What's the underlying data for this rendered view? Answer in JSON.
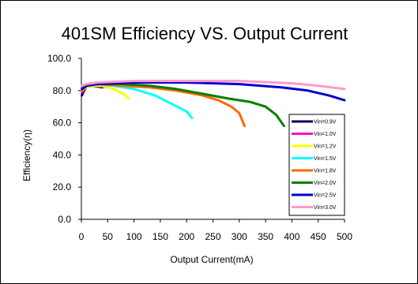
{
  "chart_data": {
    "type": "line",
    "title": "401SM Efficiency VS. Output Current",
    "xlabel": "Output Current(mA)",
    "ylabel": "Efficiency(η)",
    "xlim": [
      0,
      500
    ],
    "ylim": [
      0,
      100
    ],
    "x_ticks": [
      "0",
      "50",
      "100",
      "150",
      "200",
      "250",
      "300",
      "350",
      "400",
      "450",
      "500"
    ],
    "y_ticks": [
      "0.0",
      "20.0",
      "40.0",
      "60.0",
      "80.0",
      "100.0"
    ],
    "grid": false,
    "legend_position": "lower-right",
    "series": [
      {
        "name": "Vin=0.9V",
        "color": "#000066",
        "points": [
          [
            1,
            77
          ],
          [
            5,
            80
          ],
          [
            10,
            82
          ],
          [
            20,
            83
          ],
          [
            30,
            82.5
          ],
          [
            40,
            82
          ]
        ]
      },
      {
        "name": "Vin=1.0V",
        "color": "#ff00cc",
        "points": [
          [
            1,
            79
          ],
          [
            5,
            81
          ],
          [
            10,
            82
          ],
          [
            20,
            83
          ],
          [
            30,
            83
          ],
          [
            40,
            82.5
          ],
          [
            50,
            82
          ]
        ]
      },
      {
        "name": "Vin=1.2V",
        "color": "#ffff00",
        "points": [
          [
            1,
            80
          ],
          [
            10,
            82
          ],
          [
            20,
            83
          ],
          [
            40,
            83
          ],
          [
            60,
            81
          ],
          [
            80,
            78
          ],
          [
            90,
            75
          ]
        ]
      },
      {
        "name": "Vin=1.5V",
        "color": "#00ffff",
        "points": [
          [
            1,
            80
          ],
          [
            10,
            83
          ],
          [
            30,
            84
          ],
          [
            60,
            83
          ],
          [
            100,
            81
          ],
          [
            140,
            77
          ],
          [
            170,
            72
          ],
          [
            200,
            67
          ],
          [
            210,
            63
          ]
        ]
      },
      {
        "name": "Vin=1.8V",
        "color": "#ff6600",
        "points": [
          [
            1,
            80
          ],
          [
            10,
            83
          ],
          [
            30,
            84
          ],
          [
            80,
            83
          ],
          [
            130,
            82
          ],
          [
            180,
            80
          ],
          [
            230,
            77
          ],
          [
            260,
            74
          ],
          [
            285,
            70
          ],
          [
            300,
            66
          ],
          [
            310,
            58
          ]
        ]
      },
      {
        "name": "Vin=2.0V",
        "color": "#008000",
        "points": [
          [
            1,
            81
          ],
          [
            10,
            83
          ],
          [
            30,
            84
          ],
          [
            80,
            84
          ],
          [
            130,
            83
          ],
          [
            180,
            81
          ],
          [
            230,
            78
          ],
          [
            280,
            75
          ],
          [
            320,
            73
          ],
          [
            350,
            70
          ],
          [
            370,
            65
          ],
          [
            385,
            58
          ]
        ]
      },
      {
        "name": "Vin=2.5V",
        "color": "#0000cc",
        "points": [
          [
            1,
            81
          ],
          [
            10,
            83
          ],
          [
            30,
            84
          ],
          [
            100,
            85
          ],
          [
            200,
            85
          ],
          [
            300,
            84
          ],
          [
            380,
            82
          ],
          [
            430,
            80
          ],
          [
            470,
            77
          ],
          [
            500,
            74
          ]
        ]
      },
      {
        "name": "Vin=3.0V",
        "color": "#ff99cc",
        "points": [
          [
            1,
            83
          ],
          [
            10,
            84
          ],
          [
            30,
            85
          ],
          [
            100,
            86
          ],
          [
            200,
            86
          ],
          [
            300,
            86
          ],
          [
            400,
            84.5
          ],
          [
            450,
            83
          ],
          [
            500,
            81
          ]
        ]
      }
    ]
  }
}
